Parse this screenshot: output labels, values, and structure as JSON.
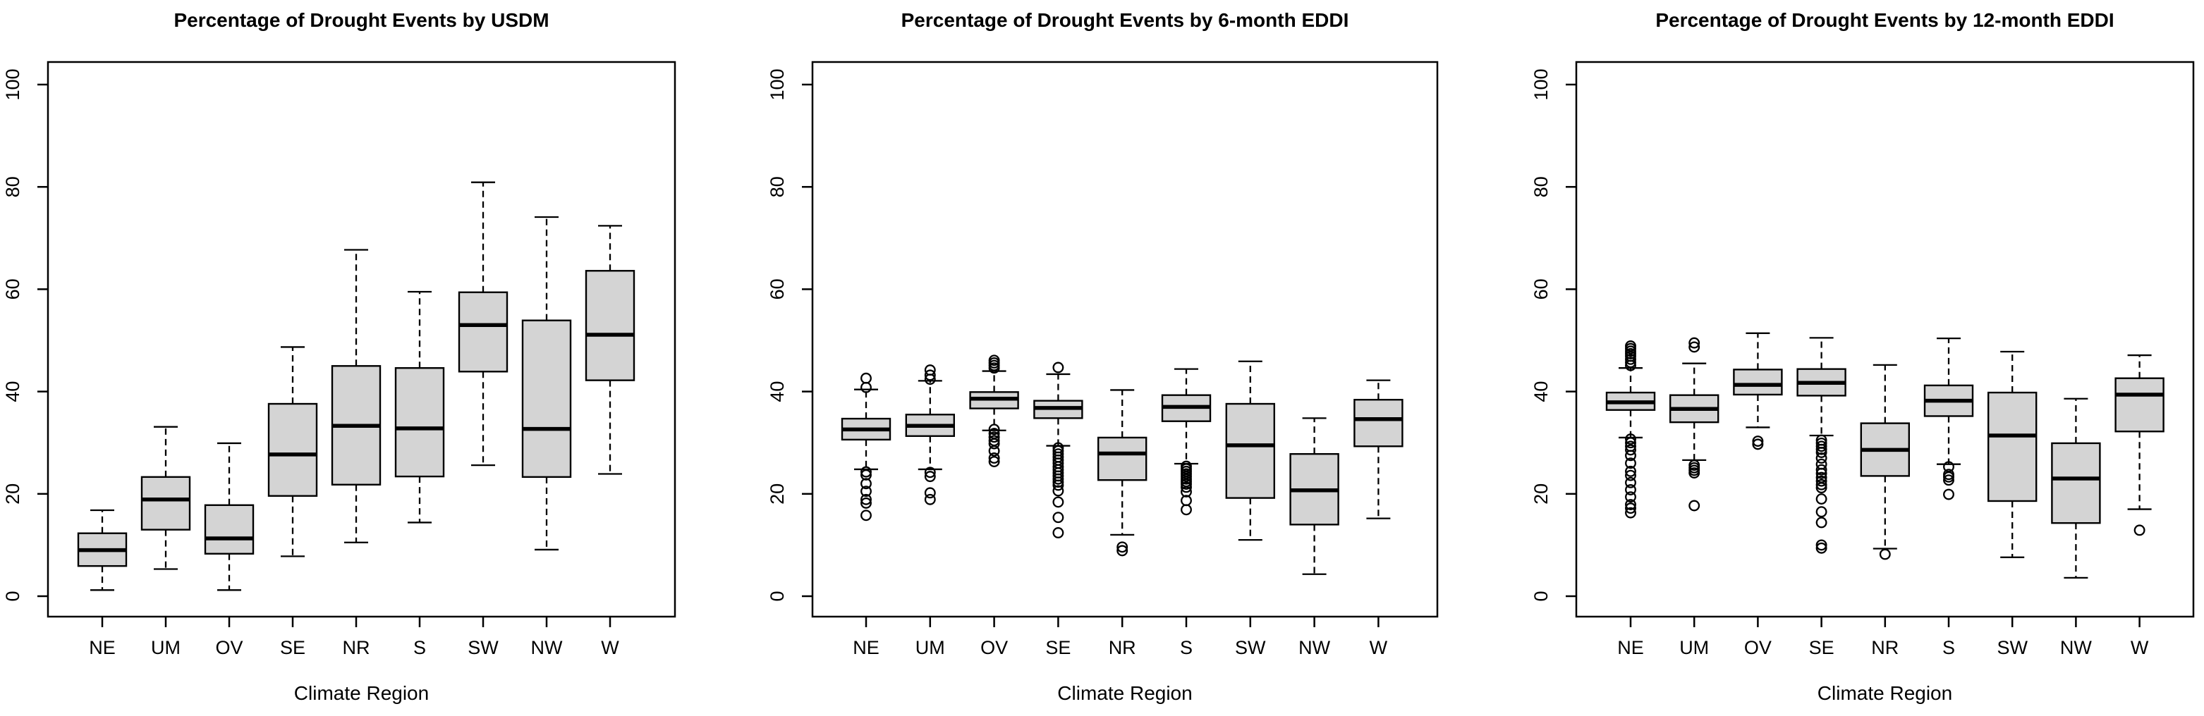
{
  "figure": {
    "background": "#ffffff",
    "box_fill": "#d4d4d4",
    "line_color": "#000000",
    "categories": [
      "NE",
      "UM",
      "OV",
      "SE",
      "NR",
      "S",
      "SW",
      "NW",
      "W"
    ],
    "xlabel": "Climate Region",
    "y_ticks": [
      0,
      20,
      40,
      60,
      80,
      100
    ],
    "y_tick_labels": [
      "0",
      "20",
      "40",
      "60",
      "80",
      "100"
    ],
    "ylim": [
      0,
      100
    ]
  },
  "chart_data": [
    {
      "type": "boxplot",
      "id": "usdm",
      "title": "Percentage of Drought Events by USDM",
      "xlabel": "Climate Region",
      "ylim": [
        0,
        100
      ],
      "y_ticks": [
        0,
        20,
        40,
        60,
        80,
        100
      ],
      "grid": false,
      "categories": [
        "NE",
        "UM",
        "OV",
        "SE",
        "NR",
        "S",
        "SW",
        "NW",
        "W"
      ],
      "boxes": [
        {
          "category": "NE",
          "whisker_low": 1.2,
          "q1": 5.9,
          "median": 9.0,
          "q3": 12.3,
          "whisker_high": 16.8,
          "outliers": []
        },
        {
          "category": "UM",
          "whisker_low": 5.3,
          "q1": 13.0,
          "median": 18.9,
          "q3": 23.3,
          "whisker_high": 33.1,
          "outliers": []
        },
        {
          "category": "OV",
          "whisker_low": 1.2,
          "q1": 8.3,
          "median": 11.3,
          "q3": 17.8,
          "whisker_high": 29.9,
          "outliers": []
        },
        {
          "category": "SE",
          "whisker_low": 7.8,
          "q1": 19.6,
          "median": 27.7,
          "q3": 37.6,
          "whisker_high": 48.7,
          "outliers": []
        },
        {
          "category": "NR",
          "whisker_low": 10.5,
          "q1": 21.8,
          "median": 33.3,
          "q3": 45.0,
          "whisker_high": 67.7,
          "outliers": []
        },
        {
          "category": "S",
          "whisker_low": 14.4,
          "q1": 23.4,
          "median": 32.8,
          "q3": 44.6,
          "whisker_high": 59.5,
          "outliers": []
        },
        {
          "category": "SW",
          "whisker_low": 25.6,
          "q1": 43.9,
          "median": 53.0,
          "q3": 59.4,
          "whisker_high": 80.9,
          "outliers": []
        },
        {
          "category": "NW",
          "whisker_low": 9.1,
          "q1": 23.3,
          "median": 32.7,
          "q3": 53.9,
          "whisker_high": 74.1,
          "outliers": []
        },
        {
          "category": "W",
          "whisker_low": 23.9,
          "q1": 42.2,
          "median": 51.1,
          "q3": 63.6,
          "whisker_high": 72.4,
          "outliers": []
        }
      ]
    },
    {
      "type": "boxplot",
      "id": "eddi6",
      "title": "Percentage of Drought Events by 6-month EDDI",
      "xlabel": "Climate Region",
      "ylim": [
        0,
        100
      ],
      "y_ticks": [
        0,
        20,
        40,
        60,
        80,
        100
      ],
      "grid": false,
      "categories": [
        "NE",
        "UM",
        "OV",
        "SE",
        "NR",
        "S",
        "SW",
        "NW",
        "W"
      ],
      "boxes": [
        {
          "category": "NE",
          "whisker_low": 24.8,
          "q1": 30.6,
          "median": 32.6,
          "q3": 34.7,
          "whisker_high": 40.4,
          "outliers": [
            42.6,
            40.8,
            24.3,
            23.7,
            22.0,
            20.5,
            18.9,
            18.2,
            15.8
          ]
        },
        {
          "category": "UM",
          "whisker_low": 24.8,
          "q1": 31.3,
          "median": 33.3,
          "q3": 35.5,
          "whisker_high": 42.1,
          "outliers": [
            44.2,
            43.2,
            42.4,
            24.2,
            23.4,
            20.2,
            18.9
          ]
        },
        {
          "category": "OV",
          "whisker_low": 32.4,
          "q1": 36.7,
          "median": 38.6,
          "q3": 39.9,
          "whisker_high": 44.0,
          "outliers": [
            46.1,
            45.6,
            45.1,
            44.6,
            32.6,
            31.8,
            31.1,
            30.4,
            29.8,
            28.4,
            27.0,
            26.3
          ]
        },
        {
          "category": "SE",
          "whisker_low": 29.4,
          "q1": 34.8,
          "median": 36.8,
          "q3": 38.2,
          "whisker_high": 43.4,
          "outliers": [
            44.7,
            29.0,
            28.4,
            27.8,
            27.2,
            26.6,
            26.0,
            25.3,
            24.7,
            24.1,
            23.5,
            22.9,
            22.3,
            21.7,
            20.6,
            18.4,
            15.4,
            12.4
          ]
        },
        {
          "category": "NR",
          "whisker_low": 12.0,
          "q1": 22.7,
          "median": 27.9,
          "q3": 31.0,
          "whisker_high": 40.3,
          "outliers": [
            9.6,
            8.9
          ]
        },
        {
          "category": "S",
          "whisker_low": 25.9,
          "q1": 34.2,
          "median": 37.0,
          "q3": 39.3,
          "whisker_high": 44.4,
          "outliers": [
            25.4,
            24.9,
            24.4,
            23.9,
            23.4,
            22.9,
            22.4,
            21.9,
            21.3,
            20.4,
            18.7,
            16.9
          ]
        },
        {
          "category": "SW",
          "whisker_low": 11.0,
          "q1": 19.2,
          "median": 29.5,
          "q3": 37.6,
          "whisker_high": 45.9,
          "outliers": []
        },
        {
          "category": "NW",
          "whisker_low": 4.3,
          "q1": 14.0,
          "median": 20.7,
          "q3": 27.8,
          "whisker_high": 34.8,
          "outliers": []
        },
        {
          "category": "W",
          "whisker_low": 15.2,
          "q1": 29.3,
          "median": 34.6,
          "q3": 38.4,
          "whisker_high": 42.2,
          "outliers": []
        }
      ]
    },
    {
      "type": "boxplot",
      "id": "eddi12",
      "title": "Percentage of Drought Events by 12-month EDDI",
      "xlabel": "Climate Region",
      "ylim": [
        0,
        100
      ],
      "y_ticks": [
        0,
        20,
        40,
        60,
        80,
        100
      ],
      "grid": false,
      "categories": [
        "NE",
        "UM",
        "OV",
        "SE",
        "NR",
        "S",
        "SW",
        "NW",
        "W"
      ],
      "boxes": [
        {
          "category": "NE",
          "whisker_low": 31.0,
          "q1": 36.4,
          "median": 37.9,
          "q3": 39.8,
          "whisker_high": 44.6,
          "outliers": [
            48.9,
            48.4,
            47.9,
            47.4,
            46.9,
            46.3,
            45.7,
            45.1,
            30.7,
            30.0,
            29.3,
            28.6,
            27.5,
            26.0,
            24.4,
            23.6,
            22.2,
            20.8,
            19.4,
            17.9,
            17.2,
            16.3
          ]
        },
        {
          "category": "UM",
          "whisker_low": 26.6,
          "q1": 34.0,
          "median": 36.6,
          "q3": 39.3,
          "whisker_high": 45.5,
          "outliers": [
            49.5,
            48.7,
            25.6,
            25.1,
            24.6,
            24.1,
            17.7
          ]
        },
        {
          "category": "OV",
          "whisker_low": 33.0,
          "q1": 39.4,
          "median": 41.3,
          "q3": 44.3,
          "whisker_high": 51.4,
          "outliers": [
            30.3,
            29.7
          ]
        },
        {
          "category": "SE",
          "whisker_low": 31.4,
          "q1": 39.2,
          "median": 41.7,
          "q3": 44.4,
          "whisker_high": 50.5,
          "outliers": [
            30.5,
            29.9,
            29.3,
            28.7,
            28.1,
            27.0,
            25.8,
            24.7,
            24.0,
            23.2,
            22.5,
            21.8,
            21.2,
            19.0,
            16.5,
            14.4,
            10.0,
            9.4
          ]
        },
        {
          "category": "NR",
          "whisker_low": 9.3,
          "q1": 23.5,
          "median": 28.6,
          "q3": 33.8,
          "whisker_high": 45.2,
          "outliers": [
            8.2
          ]
        },
        {
          "category": "S",
          "whisker_low": 25.8,
          "q1": 35.2,
          "median": 38.2,
          "q3": 41.2,
          "whisker_high": 50.4,
          "outliers": [
            25.3,
            23.8,
            23.3,
            22.7,
            19.9
          ]
        },
        {
          "category": "SW",
          "whisker_low": 7.6,
          "q1": 18.6,
          "median": 31.4,
          "q3": 39.8,
          "whisker_high": 47.8,
          "outliers": []
        },
        {
          "category": "NW",
          "whisker_low": 3.6,
          "q1": 14.3,
          "median": 23.0,
          "q3": 29.9,
          "whisker_high": 38.6,
          "outliers": []
        },
        {
          "category": "W",
          "whisker_low": 17.0,
          "q1": 32.2,
          "median": 39.4,
          "q3": 42.6,
          "whisker_high": 47.1,
          "outliers": [
            12.9
          ]
        }
      ]
    }
  ]
}
